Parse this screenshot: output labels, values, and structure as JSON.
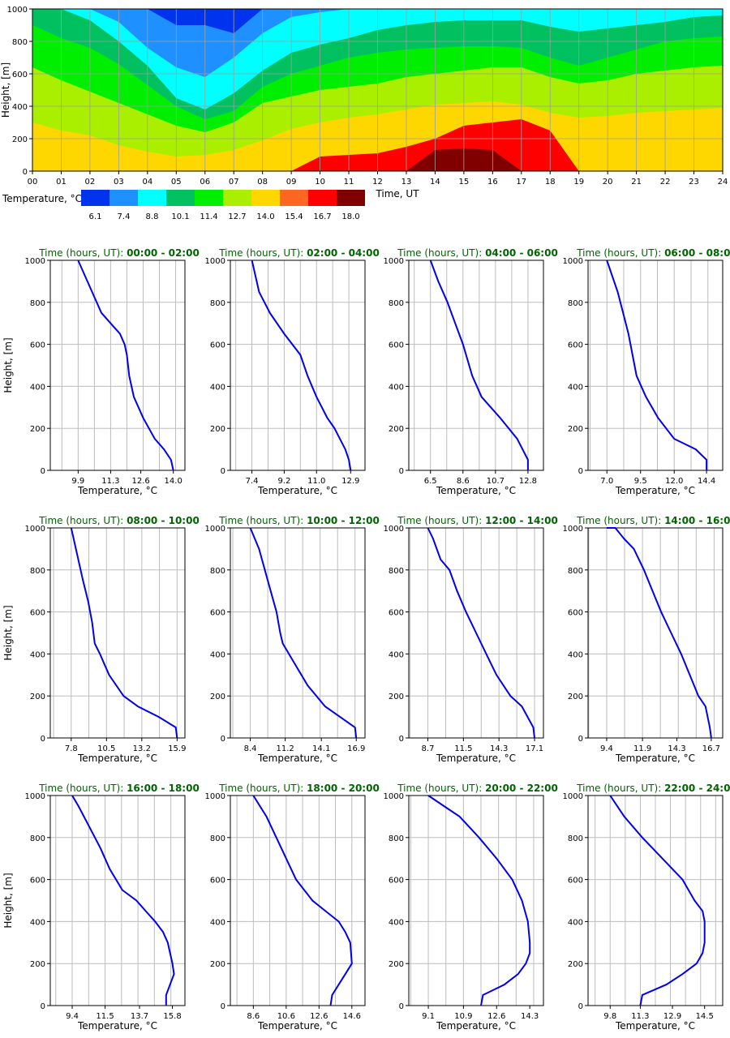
{
  "chart_data": [
    {
      "type": "heatmap",
      "ylabel": "Height, [m]",
      "xlabel": "Time, UT",
      "xticks": [
        "00",
        "01",
        "02",
        "03",
        "04",
        "05",
        "06",
        "07",
        "08",
        "09",
        "10",
        "11",
        "12",
        "13",
        "14",
        "15",
        "16",
        "17",
        "18",
        "19",
        "20",
        "21",
        "22",
        "23",
        "24"
      ],
      "yticks": [
        0,
        200,
        400,
        600,
        800,
        1000
      ],
      "xlim": [
        0,
        24
      ],
      "ylim": [
        0,
        1000
      ],
      "grid": true,
      "colorbar": {
        "label": "Temperature, °C",
        "colors": [
          "#0033ee",
          "#1e90ff",
          "#00ffff",
          "#00c060",
          "#00ee00",
          "#aaee00",
          "#ffd700",
          "#ff6622",
          "#ff0000",
          "#800000"
        ],
        "ticks": [
          "6.1",
          "7.4",
          "8.8",
          "10.1",
          "11.4",
          "12.7",
          "14.0",
          "15.4",
          "16.7",
          "18.0"
        ]
      },
      "legend_placement": "bottom-left",
      "layer_boundaries_m": {
        "x_hours": [
          0,
          1,
          2,
          3,
          4,
          5,
          6,
          7,
          8,
          9,
          10,
          11,
          12,
          13,
          14,
          15,
          16,
          17,
          18,
          19,
          20,
          21,
          22,
          23,
          24
        ],
        "b_7_4": [
          1000,
          1000,
          1000,
          1000,
          1000,
          900,
          900,
          850,
          1000,
          1000,
          1000,
          1000,
          1000,
          1000,
          1000,
          1000,
          1000,
          1000,
          1000,
          1000,
          1000,
          1000,
          1000,
          1000,
          1000
        ],
        "b_8_8": [
          1000,
          1000,
          1000,
          920,
          760,
          640,
          580,
          700,
          850,
          950,
          980,
          1000,
          1000,
          1000,
          1000,
          1000,
          1000,
          1000,
          1000,
          1000,
          1000,
          1000,
          1000,
          1000,
          1000
        ],
        "b_10_1": [
          1000,
          1000,
          930,
          800,
          650,
          450,
          380,
          480,
          620,
          730,
          780,
          820,
          870,
          900,
          920,
          930,
          930,
          930,
          890,
          860,
          880,
          900,
          920,
          950,
          960
        ],
        "b_11_4": [
          900,
          820,
          760,
          660,
          530,
          400,
          320,
          370,
          520,
          600,
          650,
          700,
          730,
          750,
          760,
          770,
          770,
          760,
          700,
          650,
          700,
          750,
          800,
          820,
          830
        ],
        "b_12_7": [
          640,
          560,
          490,
          420,
          350,
          280,
          240,
          300,
          420,
          460,
          500,
          520,
          540,
          580,
          600,
          620,
          640,
          640,
          580,
          540,
          560,
          600,
          620,
          640,
          650
        ],
        "b_14_0": [
          300,
          250,
          220,
          160,
          120,
          90,
          100,
          130,
          190,
          260,
          300,
          330,
          350,
          380,
          410,
          420,
          430,
          410,
          360,
          330,
          340,
          360,
          370,
          380,
          390
        ],
        "b_15_4": [
          0,
          0,
          0,
          0,
          0,
          0,
          0,
          0,
          0,
          0,
          0,
          0,
          100,
          150,
          190,
          230,
          260,
          270,
          180,
          0,
          0,
          0,
          0,
          0,
          0
        ],
        "b_16_7": [
          0,
          0,
          0,
          0,
          0,
          0,
          0,
          0,
          0,
          0,
          90,
          100,
          110,
          150,
          200,
          280,
          300,
          320,
          250,
          0,
          0,
          0,
          0,
          0,
          0
        ],
        "b_18_0": [
          0,
          0,
          0,
          0,
          0,
          0,
          0,
          0,
          0,
          0,
          0,
          0,
          0,
          0,
          130,
          140,
          130,
          0,
          0,
          0,
          0,
          0,
          0,
          0,
          0
        ]
      }
    },
    {
      "type": "line",
      "title_prefix": "Time (hours, UT):",
      "title_range": "00:00 - 02:00",
      "xlabel": "Temperature, °C",
      "ylabel": "Height, [m]",
      "xticks": [
        "9.9",
        "11.3",
        "12.6",
        "14.0"
      ],
      "xlim": [
        8.7,
        14.5
      ],
      "ylim": [
        0,
        1000
      ],
      "series": [
        {
          "temperature": [
            14.0,
            13.9,
            13.6,
            13.2,
            12.7,
            12.3,
            12.1,
            12.0,
            11.9,
            11.7,
            11.3,
            10.9,
            10.5,
            9.9
          ],
          "height": [
            0,
            50,
            100,
            150,
            250,
            350,
            450,
            550,
            600,
            650,
            700,
            750,
            850,
            1000
          ]
        }
      ]
    },
    {
      "type": "line",
      "title_prefix": "Time (hours, UT):",
      "title_range": "02:00 - 04:00",
      "xlabel": "Temperature, °C",
      "xticks": [
        "7.4",
        "9.2",
        "11.0",
        "12.9"
      ],
      "xlim": [
        6.2,
        13.7
      ],
      "ylim": [
        0,
        1000
      ],
      "series": [
        {
          "temperature": [
            12.9,
            12.8,
            12.6,
            12.0,
            11.6,
            11.0,
            10.5,
            10.1,
            9.2,
            8.4,
            7.8,
            7.4
          ],
          "height": [
            0,
            50,
            100,
            200,
            250,
            350,
            450,
            550,
            650,
            750,
            850,
            1000
          ]
        }
      ]
    },
    {
      "type": "line",
      "title_prefix": "Time (hours, UT):",
      "title_range": "04:00 - 06:00",
      "xlabel": "Temperature, °C",
      "xticks": [
        "6.5",
        "8.6",
        "10.7",
        "12.8"
      ],
      "xlim": [
        5.1,
        13.8
      ],
      "ylim": [
        0,
        1000
      ],
      "series": [
        {
          "temperature": [
            12.8,
            12.8,
            12.1,
            11.0,
            9.8,
            9.2,
            8.6,
            8.1,
            7.6,
            7.0,
            6.5
          ],
          "height": [
            0,
            50,
            150,
            250,
            350,
            450,
            600,
            700,
            800,
            900,
            1000
          ]
        }
      ]
    },
    {
      "type": "line",
      "title_prefix": "Time (hours, UT):",
      "title_range": "06:00 - 08:00",
      "xlabel": "Temperature, °C",
      "xticks": [
        "7.0",
        "9.5",
        "12.0",
        "14.4"
      ],
      "xlim": [
        5.6,
        15.6
      ],
      "ylim": [
        0,
        1000
      ],
      "series": [
        {
          "temperature": [
            14.4,
            14.4,
            13.6,
            12.0,
            10.8,
            9.9,
            9.2,
            8.9,
            8.6,
            8.2,
            7.8,
            7.0
          ],
          "height": [
            0,
            50,
            100,
            150,
            250,
            350,
            450,
            550,
            650,
            750,
            850,
            1000
          ]
        }
      ]
    },
    {
      "type": "line",
      "title_prefix": "Time (hours, UT):",
      "title_range": "08:00 - 10:00",
      "xlabel": "Temperature, °C",
      "xticks": [
        "7.8",
        "10.5",
        "13.2",
        "15.9"
      ],
      "xlim": [
        6.2,
        16.5
      ],
      "ylim": [
        0,
        1000
      ],
      "series": [
        {
          "temperature": [
            15.9,
            15.8,
            14.5,
            12.9,
            11.8,
            10.7,
            10.0,
            9.6,
            9.4,
            9.1,
            8.7,
            7.8
          ],
          "height": [
            0,
            50,
            100,
            150,
            200,
            300,
            400,
            450,
            550,
            650,
            750,
            1000
          ]
        }
      ]
    },
    {
      "type": "line",
      "title_prefix": "Time (hours, UT):",
      "title_range": "10:00 - 12:00",
      "xlabel": "Temperature, °C",
      "xticks": [
        "8.4",
        "11.2",
        "14.1",
        "16.9"
      ],
      "xlim": [
        6.8,
        17.6
      ],
      "ylim": [
        0,
        1000
      ],
      "series": [
        {
          "temperature": [
            16.9,
            16.8,
            14.4,
            13.0,
            12.0,
            11.0,
            10.8,
            10.5,
            9.8,
            9.1,
            8.4
          ],
          "height": [
            0,
            50,
            150,
            250,
            350,
            450,
            500,
            600,
            750,
            900,
            1000
          ]
        }
      ]
    },
    {
      "type": "line",
      "title_prefix": "Time (hours, UT):",
      "title_range": "12:00 - 14:00",
      "xlabel": "Temperature, °C",
      "xticks": [
        "8.7",
        "11.5",
        "14.3",
        "17.1"
      ],
      "xlim": [
        7.2,
        17.8
      ],
      "ylim": [
        0,
        1000
      ],
      "series": [
        {
          "temperature": [
            17.1,
            17.0,
            16.1,
            15.2,
            14.1,
            13.3,
            12.5,
            11.7,
            11.0,
            10.4,
            9.7,
            9.1,
            8.7
          ],
          "height": [
            0,
            50,
            150,
            200,
            300,
            400,
            500,
            600,
            700,
            800,
            850,
            950,
            1000
          ]
        }
      ]
    },
    {
      "type": "line",
      "title_prefix": "Time (hours, UT):",
      "title_range": "14:00 - 16:00",
      "xlabel": "Temperature, °C",
      "xticks": [
        "9.4",
        "11.9",
        "14.3",
        "16.7"
      ],
      "xlim": [
        8.1,
        17.5
      ],
      "ylim": [
        0,
        1000
      ],
      "series": [
        {
          "temperature": [
            16.7,
            16.6,
            16.3,
            15.8,
            15.2,
            14.6,
            13.9,
            13.2,
            12.6,
            12.0,
            11.3,
            10.6,
            10.0,
            9.4
          ],
          "height": [
            0,
            50,
            150,
            200,
            300,
            400,
            500,
            600,
            700,
            800,
            900,
            950,
            1000,
            1000
          ]
        }
      ]
    },
    {
      "type": "line",
      "title_prefix": "Time (hours, UT):",
      "title_range": "16:00 - 18:00",
      "xlabel": "Temperature, °C",
      "xticks": [
        "9.4",
        "11.5",
        "13.7",
        "15.8"
      ],
      "xlim": [
        8.0,
        16.6
      ],
      "ylim": [
        0,
        1000
      ],
      "series": [
        {
          "temperature": [
            15.4,
            15.4,
            15.9,
            15.8,
            15.5,
            15.2,
            14.7,
            14.1,
            13.5,
            12.6,
            11.8,
            11.2,
            10.5,
            9.8,
            9.4
          ],
          "height": [
            0,
            50,
            150,
            200,
            300,
            350,
            400,
            450,
            500,
            550,
            650,
            750,
            850,
            950,
            1000
          ]
        }
      ]
    },
    {
      "type": "line",
      "title_prefix": "Time (hours, UT):",
      "title_range": "18:00 - 20:00",
      "xlabel": "Temperature, °C",
      "xticks": [
        "8.6",
        "10.6",
        "12.6",
        "14.6"
      ],
      "xlim": [
        7.2,
        15.4
      ],
      "ylim": [
        0,
        1000
      ],
      "series": [
        {
          "temperature": [
            13.3,
            13.4,
            14.2,
            14.6,
            14.5,
            14.2,
            13.8,
            13.0,
            12.2,
            11.2,
            10.3,
            9.4,
            8.6
          ],
          "height": [
            0,
            50,
            150,
            200,
            300,
            350,
            400,
            450,
            500,
            600,
            750,
            900,
            1000
          ]
        }
      ]
    },
    {
      "type": "line",
      "title_prefix": "Time (hours, UT):",
      "title_range": "20:00 - 22:00",
      "xlabel": "Temperature, °C",
      "xticks": [
        "9.1",
        "10.9",
        "12.6",
        "14.3"
      ],
      "xlim": [
        8.1,
        15.0
      ],
      "ylim": [
        0,
        1000
      ],
      "series": [
        {
          "temperature": [
            11.8,
            11.9,
            13.0,
            13.7,
            14.1,
            14.3,
            14.3,
            14.2,
            13.9,
            13.4,
            12.6,
            11.7,
            10.7,
            9.9,
            9.1
          ],
          "height": [
            0,
            50,
            100,
            150,
            200,
            250,
            300,
            400,
            500,
            600,
            700,
            800,
            900,
            950,
            1000
          ]
        }
      ]
    },
    {
      "type": "line",
      "title_prefix": "Time (hours, UT):",
      "title_range": "22:00 - 24:00",
      "xlabel": "Temperature, °C",
      "xticks": [
        "9.8",
        "11.3",
        "12.9",
        "14.5"
      ],
      "xlim": [
        8.7,
        15.4
      ],
      "ylim": [
        0,
        1000
      ],
      "series": [
        {
          "temperature": [
            11.3,
            11.4,
            12.6,
            13.4,
            14.1,
            14.4,
            14.5,
            14.5,
            14.4,
            14.0,
            13.4,
            12.4,
            11.4,
            10.5,
            9.8
          ],
          "height": [
            0,
            50,
            100,
            150,
            200,
            250,
            300,
            400,
            450,
            500,
            600,
            700,
            800,
            900,
            1000
          ]
        }
      ]
    }
  ]
}
